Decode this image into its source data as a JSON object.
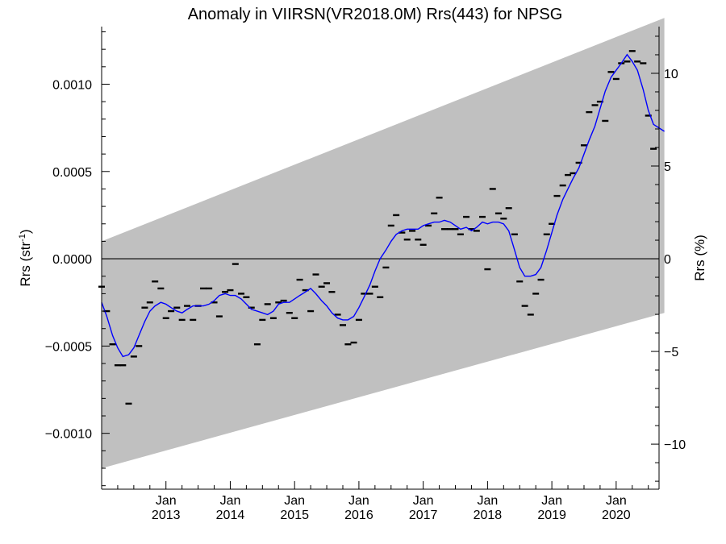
{
  "chart_data": {
    "type": "line",
    "title": "Anomaly in VIIRSN(VR2018.0M) Rrs(443) for NPSG",
    "ylabel_left_base": "Rrs (str",
    "ylabel_left_sup": "-1",
    "ylabel_left_end": ")",
    "ylabel_right": "Rrs (%)",
    "x_start": "2012-01",
    "x_end": "2020-09",
    "ylim_left": [
      -0.00132,
      0.00133
    ],
    "ylim_right": [
      -12.43,
      12.52
    ],
    "yticks_left": [
      "0.0010",
      "0.0005",
      "0.0000",
      "−0.0005",
      "−0.0010"
    ],
    "yticks_left_values": [
      0.001,
      0.0005,
      0.0,
      -0.0005,
      -0.001
    ],
    "yticks_right": [
      "10",
      "5",
      "0",
      "−5",
      "−10"
    ],
    "yticks_right_values": [
      10,
      5,
      0,
      -5,
      -10
    ],
    "xtick_month_label": "Jan",
    "xtick_year_labels": [
      "2013",
      "2014",
      "2015",
      "2016",
      "2017",
      "2018",
      "2019",
      "2020"
    ],
    "grey_band": {
      "upper": [
        [
          2012.0,
          0.0001
        ],
        [
          2020.75,
          0.00138
        ]
      ],
      "lower": [
        [
          2012.0,
          -0.0012
        ],
        [
          2020.75,
          -0.00031
        ]
      ]
    },
    "zero_line": 0,
    "colors": {
      "smoothed": "#0000ff",
      "monthly": "#000000",
      "band": "#c0c0c0"
    },
    "monthly_points": [
      [
        2012.0,
        -0.00016
      ],
      [
        2012.08,
        -0.0003
      ],
      [
        2012.17,
        -0.00049
      ],
      [
        2012.25,
        -0.00061
      ],
      [
        2012.33,
        -0.00061
      ],
      [
        2012.42,
        -0.00083
      ],
      [
        2012.5,
        -0.00056
      ],
      [
        2012.58,
        -0.0005
      ],
      [
        2012.67,
        -0.00028
      ],
      [
        2012.75,
        -0.00025
      ],
      [
        2012.83,
        -0.00013
      ],
      [
        2012.92,
        -0.00017
      ],
      [
        2013.0,
        -0.00034
      ],
      [
        2013.08,
        -0.0003
      ],
      [
        2013.17,
        -0.00028
      ],
      [
        2013.25,
        -0.00035
      ],
      [
        2013.33,
        -0.00027
      ],
      [
        2013.42,
        -0.00035
      ],
      [
        2013.5,
        -0.00027
      ],
      [
        2013.58,
        -0.00017
      ],
      [
        2013.67,
        -0.00017
      ],
      [
        2013.75,
        -0.00025
      ],
      [
        2013.83,
        -0.00033
      ],
      [
        2013.92,
        -0.00019
      ],
      [
        2014.0,
        -0.00018
      ],
      [
        2014.08,
        -3e-05
      ],
      [
        2014.17,
        -0.0002
      ],
      [
        2014.25,
        -0.00022
      ],
      [
        2014.33,
        -0.00028
      ],
      [
        2014.42,
        -0.00049
      ],
      [
        2014.5,
        -0.00035
      ],
      [
        2014.58,
        -0.00026
      ],
      [
        2014.67,
        -0.00034
      ],
      [
        2014.75,
        -0.00025
      ],
      [
        2014.83,
        -0.00024
      ],
      [
        2014.92,
        -0.00031
      ],
      [
        2015.0,
        -0.00034
      ],
      [
        2015.08,
        -0.00012
      ],
      [
        2015.17,
        -0.00018
      ],
      [
        2015.25,
        -0.0003
      ],
      [
        2015.33,
        -9e-05
      ],
      [
        2015.42,
        -0.00016
      ],
      [
        2015.5,
        -0.00014
      ],
      [
        2015.58,
        -0.00019
      ],
      [
        2015.67,
        -0.00032
      ],
      [
        2015.75,
        -0.00038
      ],
      [
        2015.83,
        -0.00049
      ],
      [
        2015.92,
        -0.00048
      ],
      [
        2016.0,
        -0.00035
      ],
      [
        2016.08,
        -0.0002
      ],
      [
        2016.17,
        -0.0002
      ],
      [
        2016.25,
        -0.00016
      ],
      [
        2016.33,
        -0.00022
      ],
      [
        2016.42,
        -5e-05
      ],
      [
        2016.5,
        0.00019
      ],
      [
        2016.58,
        0.00025
      ],
      [
        2016.67,
        0.00015
      ],
      [
        2016.75,
        0.00011
      ],
      [
        2016.83,
        0.00016
      ],
      [
        2016.92,
        0.00011
      ],
      [
        2017.0,
        8e-05
      ],
      [
        2017.08,
        0.00019
      ],
      [
        2017.17,
        0.00026
      ],
      [
        2017.25,
        0.00035
      ],
      [
        2017.33,
        0.00017
      ],
      [
        2017.42,
        0.00017
      ],
      [
        2017.5,
        0.00017
      ],
      [
        2017.58,
        0.00014
      ],
      [
        2017.67,
        0.00024
      ],
      [
        2017.75,
        0.00017
      ],
      [
        2017.83,
        0.00016
      ],
      [
        2017.92,
        0.00024
      ],
      [
        2018.0,
        -6e-05
      ],
      [
        2018.08,
        0.0004
      ],
      [
        2018.17,
        0.00026
      ],
      [
        2018.25,
        0.00023
      ],
      [
        2018.33,
        0.00029
      ],
      [
        2018.42,
        0.00014
      ],
      [
        2018.5,
        -0.00013
      ],
      [
        2018.58,
        -0.00027
      ],
      [
        2018.67,
        -0.00032
      ],
      [
        2018.75,
        -0.0002
      ],
      [
        2018.83,
        -0.00012
      ],
      [
        2018.92,
        0.00014
      ],
      [
        2019.0,
        0.0002
      ],
      [
        2019.08,
        0.00036
      ],
      [
        2019.17,
        0.00042
      ],
      [
        2019.25,
        0.00048
      ],
      [
        2019.33,
        0.00049
      ],
      [
        2019.42,
        0.00055
      ],
      [
        2019.5,
        0.00065
      ],
      [
        2019.58,
        0.00084
      ],
      [
        2019.67,
        0.00088
      ],
      [
        2019.75,
        0.0009
      ],
      [
        2019.83,
        0.00079
      ],
      [
        2019.92,
        0.00107
      ],
      [
        2020.0,
        0.00103
      ],
      [
        2020.08,
        0.00112
      ],
      [
        2020.17,
        0.00113
      ],
      [
        2020.25,
        0.00119
      ],
      [
        2020.33,
        0.00113
      ],
      [
        2020.42,
        0.00112
      ],
      [
        2020.5,
        0.00082
      ],
      [
        2020.58,
        0.00063
      ]
    ],
    "smoothed_line": [
      [
        2012.0,
        -0.00025
      ],
      [
        2012.08,
        -0.00033
      ],
      [
        2012.17,
        -0.00044
      ],
      [
        2012.25,
        -0.00051
      ],
      [
        2012.33,
        -0.00056
      ],
      [
        2012.42,
        -0.00055
      ],
      [
        2012.5,
        -0.00051
      ],
      [
        2012.58,
        -0.00044
      ],
      [
        2012.67,
        -0.00036
      ],
      [
        2012.75,
        -0.0003
      ],
      [
        2012.83,
        -0.00027
      ],
      [
        2012.92,
        -0.00025
      ],
      [
        2013.0,
        -0.00026
      ],
      [
        2013.08,
        -0.00028
      ],
      [
        2013.17,
        -0.0003
      ],
      [
        2013.25,
        -0.00031
      ],
      [
        2013.33,
        -0.00029
      ],
      [
        2013.42,
        -0.00027
      ],
      [
        2013.5,
        -0.00027
      ],
      [
        2013.58,
        -0.00027
      ],
      [
        2013.67,
        -0.00026
      ],
      [
        2013.75,
        -0.00024
      ],
      [
        2013.83,
        -0.00021
      ],
      [
        2013.92,
        -0.0002
      ],
      [
        2014.0,
        -0.00021
      ],
      [
        2014.08,
        -0.00021
      ],
      [
        2014.17,
        -0.00023
      ],
      [
        2014.25,
        -0.00026
      ],
      [
        2014.33,
        -0.00029
      ],
      [
        2014.42,
        -0.0003
      ],
      [
        2014.5,
        -0.00031
      ],
      [
        2014.58,
        -0.00032
      ],
      [
        2014.67,
        -0.0003
      ],
      [
        2014.75,
        -0.00026
      ],
      [
        2014.83,
        -0.00025
      ],
      [
        2014.92,
        -0.00025
      ],
      [
        2015.0,
        -0.00023
      ],
      [
        2015.08,
        -0.00021
      ],
      [
        2015.17,
        -0.00019
      ],
      [
        2015.25,
        -0.00017
      ],
      [
        2015.33,
        -0.0002
      ],
      [
        2015.42,
        -0.00024
      ],
      [
        2015.5,
        -0.00027
      ],
      [
        2015.58,
        -0.00031
      ],
      [
        2015.67,
        -0.00034
      ],
      [
        2015.75,
        -0.00035
      ],
      [
        2015.83,
        -0.00035
      ],
      [
        2015.92,
        -0.00033
      ],
      [
        2016.0,
        -0.00028
      ],
      [
        2016.08,
        -0.00022
      ],
      [
        2016.17,
        -0.00015
      ],
      [
        2016.25,
        -7e-05
      ],
      [
        2016.33,
        0.0
      ],
      [
        2016.42,
        5e-05
      ],
      [
        2016.5,
        0.0001
      ],
      [
        2016.58,
        0.00014
      ],
      [
        2016.67,
        0.00016
      ],
      [
        2016.75,
        0.00017
      ],
      [
        2016.83,
        0.00017
      ],
      [
        2016.92,
        0.00017
      ],
      [
        2017.0,
        0.00019
      ],
      [
        2017.08,
        0.0002
      ],
      [
        2017.17,
        0.00021
      ],
      [
        2017.25,
        0.00021
      ],
      [
        2017.33,
        0.00022
      ],
      [
        2017.42,
        0.00021
      ],
      [
        2017.5,
        0.00019
      ],
      [
        2017.58,
        0.00017
      ],
      [
        2017.67,
        0.00018
      ],
      [
        2017.75,
        0.00016
      ],
      [
        2017.83,
        0.00018
      ],
      [
        2017.92,
        0.00021
      ],
      [
        2018.0,
        0.0002
      ],
      [
        2018.08,
        0.00021
      ],
      [
        2018.17,
        0.00021
      ],
      [
        2018.25,
        0.0002
      ],
      [
        2018.33,
        0.00016
      ],
      [
        2018.42,
        5e-05
      ],
      [
        2018.5,
        -5e-05
      ],
      [
        2018.58,
        -0.0001
      ],
      [
        2018.67,
        -0.0001
      ],
      [
        2018.75,
        -9e-05
      ],
      [
        2018.83,
        -5e-05
      ],
      [
        2018.92,
        5e-05
      ],
      [
        2019.0,
        0.00015
      ],
      [
        2019.08,
        0.00025
      ],
      [
        2019.17,
        0.00034
      ],
      [
        2019.25,
        0.0004
      ],
      [
        2019.33,
        0.00046
      ],
      [
        2019.42,
        0.00052
      ],
      [
        2019.5,
        0.0006
      ],
      [
        2019.58,
        0.00068
      ],
      [
        2019.67,
        0.00076
      ],
      [
        2019.75,
        0.00086
      ],
      [
        2019.83,
        0.00096
      ],
      [
        2019.92,
        0.00104
      ],
      [
        2020.0,
        0.00108
      ],
      [
        2020.08,
        0.00112
      ],
      [
        2020.17,
        0.00117
      ],
      [
        2020.25,
        0.00113
      ],
      [
        2020.33,
        0.00108
      ],
      [
        2020.42,
        0.00097
      ],
      [
        2020.5,
        0.00085
      ],
      [
        2020.58,
        0.00077
      ],
      [
        2020.75,
        0.00073
      ]
    ]
  }
}
